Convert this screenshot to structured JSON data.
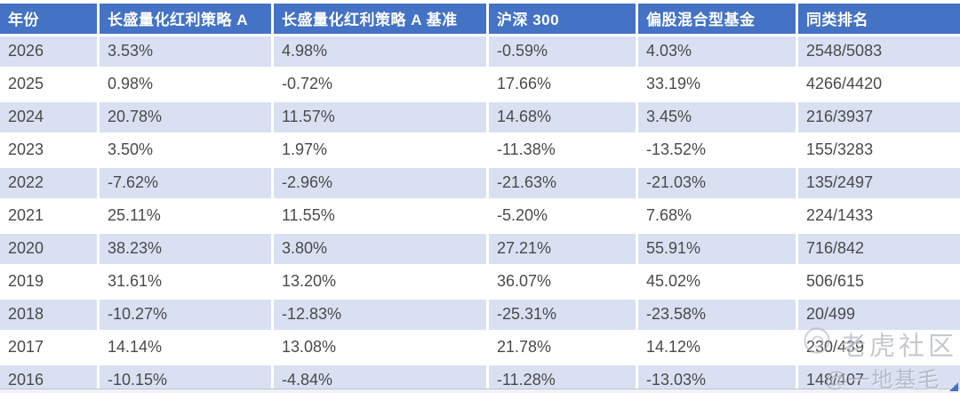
{
  "chart_data": {
    "type": "table",
    "columns": [
      "年份",
      "长盛量化红利策略 A",
      "长盛量化红利策略 A 基准",
      "沪深 300",
      "偏股混合型基金",
      "同类排名"
    ],
    "rows": [
      [
        "2026",
        "3.53%",
        "4.98%",
        "-0.59%",
        "4.03%",
        "2548/5083"
      ],
      [
        "2025",
        "0.98%",
        "-0.72%",
        "17.66%",
        "33.19%",
        "4266/4420"
      ],
      [
        "2024",
        "20.78%",
        "11.57%",
        "14.68%",
        "3.45%",
        "216/3937"
      ],
      [
        "2023",
        "3.50%",
        "1.97%",
        "-11.38%",
        "-13.52%",
        "155/3283"
      ],
      [
        "2022",
        "-7.62%",
        "-2.96%",
        "-21.63%",
        "-21.03%",
        "135/2497"
      ],
      [
        "2021",
        "25.11%",
        "11.55%",
        "-5.20%",
        "7.68%",
        "224/1433"
      ],
      [
        "2020",
        "38.23%",
        "3.80%",
        "27.21%",
        "55.91%",
        "716/842"
      ],
      [
        "2019",
        "31.61%",
        "13.20%",
        "36.07%",
        "45.02%",
        "506/615"
      ],
      [
        "2018",
        "-10.27%",
        "-12.83%",
        "-25.31%",
        "-23.58%",
        "20/499"
      ],
      [
        "2017",
        "14.14%",
        "13.08%",
        "21.78%",
        "14.12%",
        "230/439"
      ],
      [
        "2016",
        "-10.15%",
        "-4.84%",
        "-11.28%",
        "-13.03%",
        "148/407"
      ]
    ]
  },
  "watermark": {
    "community": "老虎社区",
    "author": "@一地基毛"
  },
  "colors": {
    "header_bg": "#4472C4",
    "band_row_bg": "#D9E0F2",
    "plain_row_bg": "#FFFFFF",
    "header_text": "#FFFFFF",
    "cell_text": "#4A4A4A",
    "watermark_text": "#949CAA",
    "corner_triangle": "#4573C4"
  }
}
